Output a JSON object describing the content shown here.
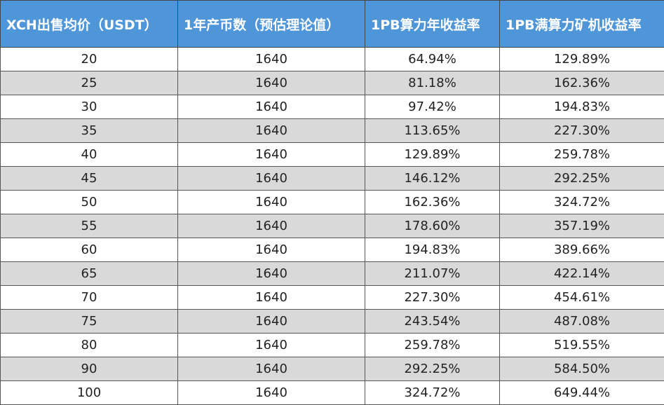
{
  "table": {
    "header": [
      "XCH出售均价（USDT）",
      "1年产币数（预估理论值）",
      "1PB算力年收益率",
      "1PB满算力矿机收益率"
    ],
    "rows": [
      [
        "20",
        "1640",
        "64.94%",
        "129.89%"
      ],
      [
        "25",
        "1640",
        "81.18%",
        "162.36%"
      ],
      [
        "30",
        "1640",
        "97.42%",
        "194.83%"
      ],
      [
        "35",
        "1640",
        "113.65%",
        "227.30%"
      ],
      [
        "40",
        "1640",
        "129.89%",
        "259.78%"
      ],
      [
        "45",
        "1640",
        "146.12%",
        "292.25%"
      ],
      [
        "50",
        "1640",
        "162.36%",
        "324.72%"
      ],
      [
        "55",
        "1640",
        "178.60%",
        "357.19%"
      ],
      [
        "60",
        "1640",
        "194.83%",
        "389.66%"
      ],
      [
        "65",
        "1640",
        "211.07%",
        "422.14%"
      ],
      [
        "70",
        "1640",
        "227.30%",
        "454.61%"
      ],
      [
        "75",
        "1640",
        "243.54%",
        "487.08%"
      ],
      [
        "80",
        "1640",
        "259.78%",
        "519.55%"
      ],
      [
        "90",
        "1640",
        "292.25%",
        "584.50%"
      ],
      [
        "100",
        "1640",
        "324.72%",
        "649.44%"
      ]
    ]
  }
}
